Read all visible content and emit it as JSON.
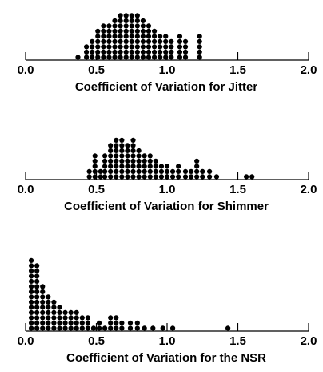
{
  "chart_data": [
    {
      "type": "scatter",
      "subtype": "dot-plot",
      "xlabel": "Coefficient of Variation for Jitter",
      "xlim": [
        0.0,
        2.0
      ],
      "xticks": [
        0.0,
        0.5,
        1.0,
        1.5,
        2.0
      ],
      "xtick_labels": [
        "0.0",
        "0.5",
        "1.0",
        "1.5",
        "2.0"
      ],
      "bin_width": 0.04,
      "bins": [
        {
          "x": 0.37,
          "count": 1
        },
        {
          "x": 0.43,
          "count": 3
        },
        {
          "x": 0.47,
          "count": 4
        },
        {
          "x": 0.51,
          "count": 6
        },
        {
          "x": 0.55,
          "count": 7
        },
        {
          "x": 0.59,
          "count": 7
        },
        {
          "x": 0.63,
          "count": 8
        },
        {
          "x": 0.67,
          "count": 9
        },
        {
          "x": 0.71,
          "count": 9
        },
        {
          "x": 0.75,
          "count": 9
        },
        {
          "x": 0.79,
          "count": 9
        },
        {
          "x": 0.83,
          "count": 8
        },
        {
          "x": 0.87,
          "count": 7
        },
        {
          "x": 0.91,
          "count": 6
        },
        {
          "x": 0.95,
          "count": 5
        },
        {
          "x": 0.99,
          "count": 5
        },
        {
          "x": 1.03,
          "count": 4
        },
        {
          "x": 1.09,
          "count": 5
        },
        {
          "x": 1.13,
          "count": 4
        },
        {
          "x": 1.23,
          "count": 5
        }
      ]
    },
    {
      "type": "scatter",
      "subtype": "dot-plot",
      "xlabel": "Coefficient of Variation for Shimmer",
      "xlim": [
        0.0,
        2.0
      ],
      "xticks": [
        0.0,
        0.5,
        1.0,
        1.5,
        2.0
      ],
      "xtick_labels": [
        "0.0",
        "0.5",
        "1.0",
        "1.5",
        "2.0"
      ],
      "bin_width": 0.04,
      "bins": [
        {
          "x": 0.45,
          "count": 2
        },
        {
          "x": 0.49,
          "count": 5
        },
        {
          "x": 0.53,
          "count": 2
        },
        {
          "x": 0.56,
          "count": 5
        },
        {
          "x": 0.6,
          "count": 7
        },
        {
          "x": 0.64,
          "count": 8
        },
        {
          "x": 0.68,
          "count": 8
        },
        {
          "x": 0.72,
          "count": 7
        },
        {
          "x": 0.76,
          "count": 8
        },
        {
          "x": 0.8,
          "count": 6
        },
        {
          "x": 0.84,
          "count": 5
        },
        {
          "x": 0.88,
          "count": 5
        },
        {
          "x": 0.92,
          "count": 4
        },
        {
          "x": 0.96,
          "count": 3
        },
        {
          "x": 1.0,
          "count": 3
        },
        {
          "x": 1.04,
          "count": 2
        },
        {
          "x": 1.08,
          "count": 3
        },
        {
          "x": 1.13,
          "count": 2
        },
        {
          "x": 1.17,
          "count": 2
        },
        {
          "x": 1.21,
          "count": 4
        },
        {
          "x": 1.25,
          "count": 2
        },
        {
          "x": 1.3,
          "count": 2
        },
        {
          "x": 1.35,
          "count": 1
        },
        {
          "x": 1.56,
          "count": 1
        },
        {
          "x": 1.6,
          "count": 1
        }
      ]
    },
    {
      "type": "scatter",
      "subtype": "dot-plot",
      "xlabel": "Coefficient of Variation for the NSR",
      "xlim": [
        0.0,
        2.0
      ],
      "xticks": [
        0.0,
        0.5,
        1.0,
        1.5,
        2.0
      ],
      "xtick_labels": [
        "0.0",
        "0.5",
        "1.0",
        "1.5",
        "2.0"
      ],
      "bin_width": 0.04,
      "bins": [
        {
          "x": 0.04,
          "count": 14
        },
        {
          "x": 0.08,
          "count": 13
        },
        {
          "x": 0.12,
          "count": 9
        },
        {
          "x": 0.16,
          "count": 7
        },
        {
          "x": 0.2,
          "count": 6
        },
        {
          "x": 0.24,
          "count": 5
        },
        {
          "x": 0.28,
          "count": 4
        },
        {
          "x": 0.32,
          "count": 4
        },
        {
          "x": 0.36,
          "count": 4
        },
        {
          "x": 0.4,
          "count": 3
        },
        {
          "x": 0.44,
          "count": 3
        },
        {
          "x": 0.48,
          "count": 1
        },
        {
          "x": 0.52,
          "count": 2
        },
        {
          "x": 0.56,
          "count": 1
        },
        {
          "x": 0.6,
          "count": 3
        },
        {
          "x": 0.64,
          "count": 3
        },
        {
          "x": 0.68,
          "count": 2
        },
        {
          "x": 0.74,
          "count": 2
        },
        {
          "x": 0.79,
          "count": 2
        },
        {
          "x": 0.84,
          "count": 1
        },
        {
          "x": 0.9,
          "count": 1
        },
        {
          "x": 0.97,
          "count": 1
        },
        {
          "x": 1.04,
          "count": 1
        },
        {
          "x": 1.43,
          "count": 1
        }
      ]
    }
  ]
}
